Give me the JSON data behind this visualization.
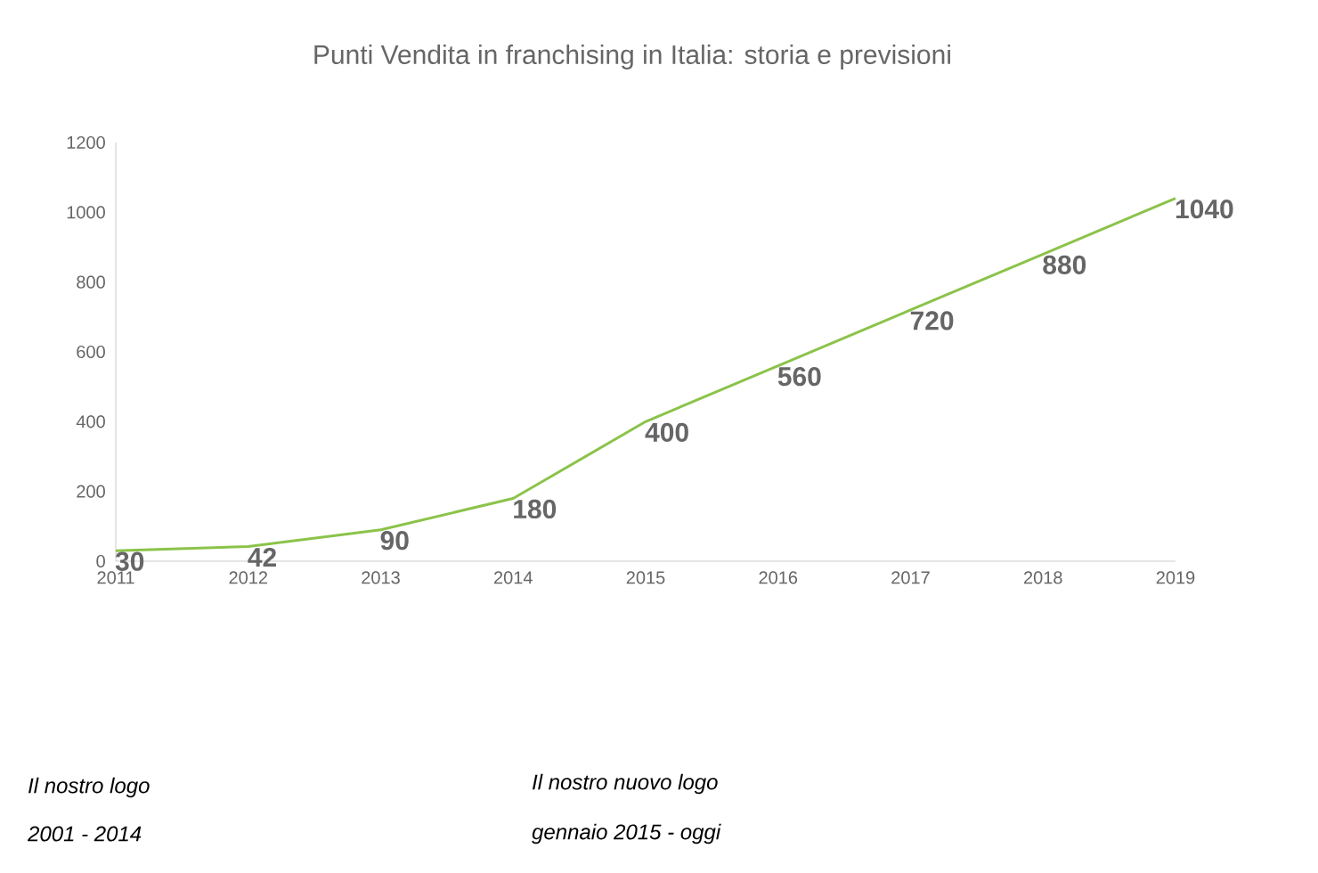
{
  "chart_data": {
    "type": "line",
    "title": "Punti Vendita in franchising in Italia: storia e previsioni",
    "x": [
      2011,
      2012,
      2013,
      2014,
      2015,
      2016,
      2017,
      2018,
      2019
    ],
    "values": [
      30,
      42,
      90,
      180,
      400,
      560,
      720,
      880,
      1040
    ],
    "color": "#8bc34a",
    "data_labels": true,
    "marker": "none",
    "grid": false,
    "xlim": [
      2011,
      2019
    ],
    "xticks": [
      2011,
      2012,
      2013,
      2014,
      2015,
      2016,
      2017,
      2018,
      2019
    ],
    "ylim": [
      0,
      1200
    ],
    "yticks": [
      0,
      200,
      400,
      600,
      800,
      1000,
      1200
    ],
    "annotations": [
      "Il nostro logo",
      "2001 - 2014",
      "Il nostro nuovo logo",
      "gennaio 2015 - oggi"
    ]
  }
}
